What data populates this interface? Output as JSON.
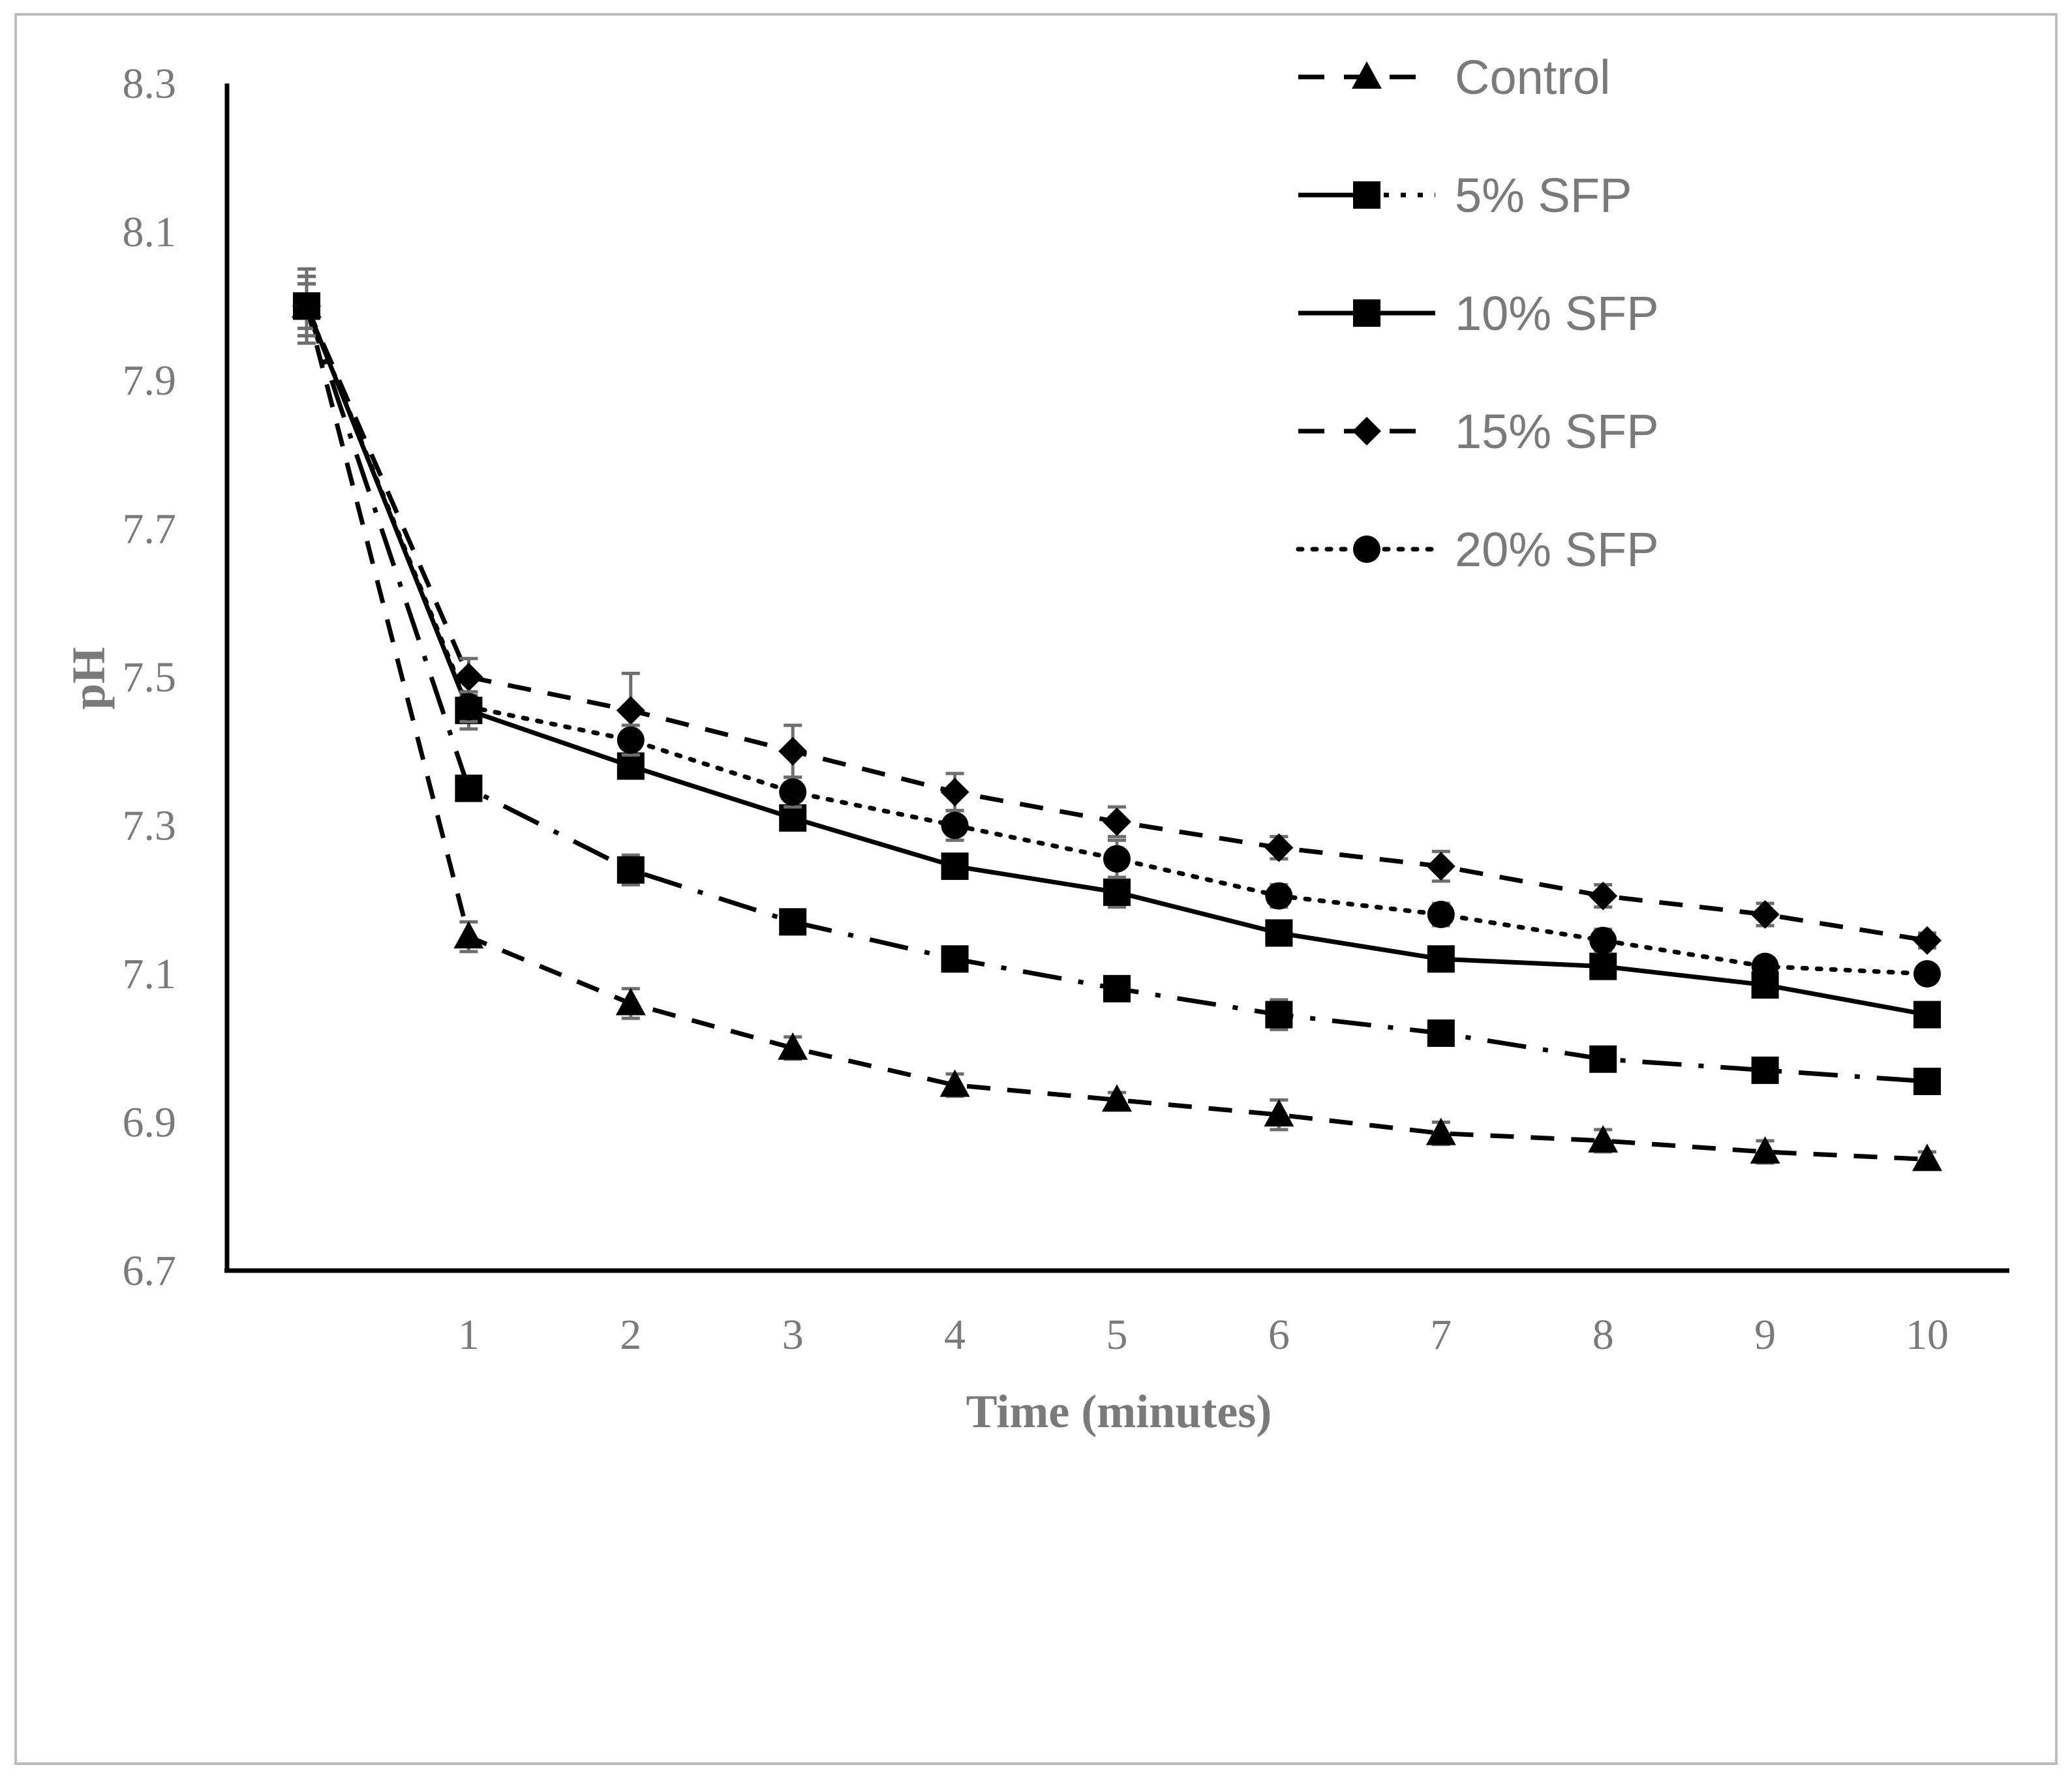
{
  "chart_data": {
    "type": "line",
    "title": "",
    "xlabel": "Time (minutes)",
    "ylabel": "pH",
    "x": [
      0,
      1,
      2,
      3,
      4,
      5,
      6,
      7,
      8,
      9,
      10
    ],
    "x_tick_labels": [
      "1",
      "2",
      "3",
      "4",
      "5",
      "6",
      "7",
      "8",
      "9",
      "10"
    ],
    "y_tick_labels": [
      "6.7",
      "6.9",
      "7.1",
      "7.3",
      "7.5",
      "7.7",
      "7.9",
      "8.1",
      "8.3"
    ],
    "xlim": [
      -1,
      10.5
    ],
    "ylim": [
      6.7,
      8.3
    ],
    "grid": false,
    "legend_position": "top-right",
    "series": [
      {
        "name": "Control",
        "marker": "triangle",
        "line_style": "dashed",
        "values": [
          8.0,
          7.15,
          7.06,
          7.0,
          6.95,
          6.93,
          6.91,
          6.885,
          6.875,
          6.86,
          6.85
        ],
        "errors": [
          0.03,
          0.02,
          0.02,
          0.015,
          0.015,
          0.01,
          0.02,
          0.015,
          0.015,
          0.015,
          0.01
        ]
      },
      {
        "name": "5% SFP",
        "marker": "square",
        "line_style": "dash-dot",
        "values": [
          8.0,
          7.35,
          7.24,
          7.17,
          7.12,
          7.08,
          7.045,
          7.02,
          6.985,
          6.97,
          6.955
        ],
        "errors": [
          0.03,
          0.015,
          0.02,
          0.015,
          0.015,
          0.01,
          0.02,
          0.015,
          0.015,
          0.01,
          0.01
        ]
      },
      {
        "name": "10% SFP",
        "marker": "square",
        "line_style": "solid",
        "values": [
          8.0,
          7.455,
          7.38,
          7.31,
          7.245,
          7.21,
          7.155,
          7.12,
          7.11,
          7.085,
          7.045
        ],
        "errors": [
          0.05,
          0.025,
          0.015,
          0.015,
          0.01,
          0.02,
          0.015,
          0.015,
          0.01,
          0.01,
          0.01
        ]
      },
      {
        "name": "15% SFP",
        "marker": "diamond",
        "line_style": "dashed",
        "values": [
          8.0,
          7.5,
          7.455,
          7.4,
          7.345,
          7.305,
          7.27,
          7.245,
          7.205,
          7.18,
          7.145
        ],
        "errors": [
          0.04,
          0.025,
          0.05,
          0.035,
          0.025,
          0.02,
          0.015,
          0.02,
          0.015,
          0.015,
          0.01
        ]
      },
      {
        "name": "20% SFP",
        "marker": "circle",
        "line_style": "dotted",
        "values": [
          8.0,
          7.46,
          7.415,
          7.345,
          7.3,
          7.255,
          7.205,
          7.18,
          7.145,
          7.11,
          7.1
        ],
        "errors": [
          0.04,
          0.02,
          0.02,
          0.02,
          0.02,
          0.025,
          0.015,
          0.015,
          0.015,
          0.01,
          0.01
        ]
      }
    ]
  }
}
